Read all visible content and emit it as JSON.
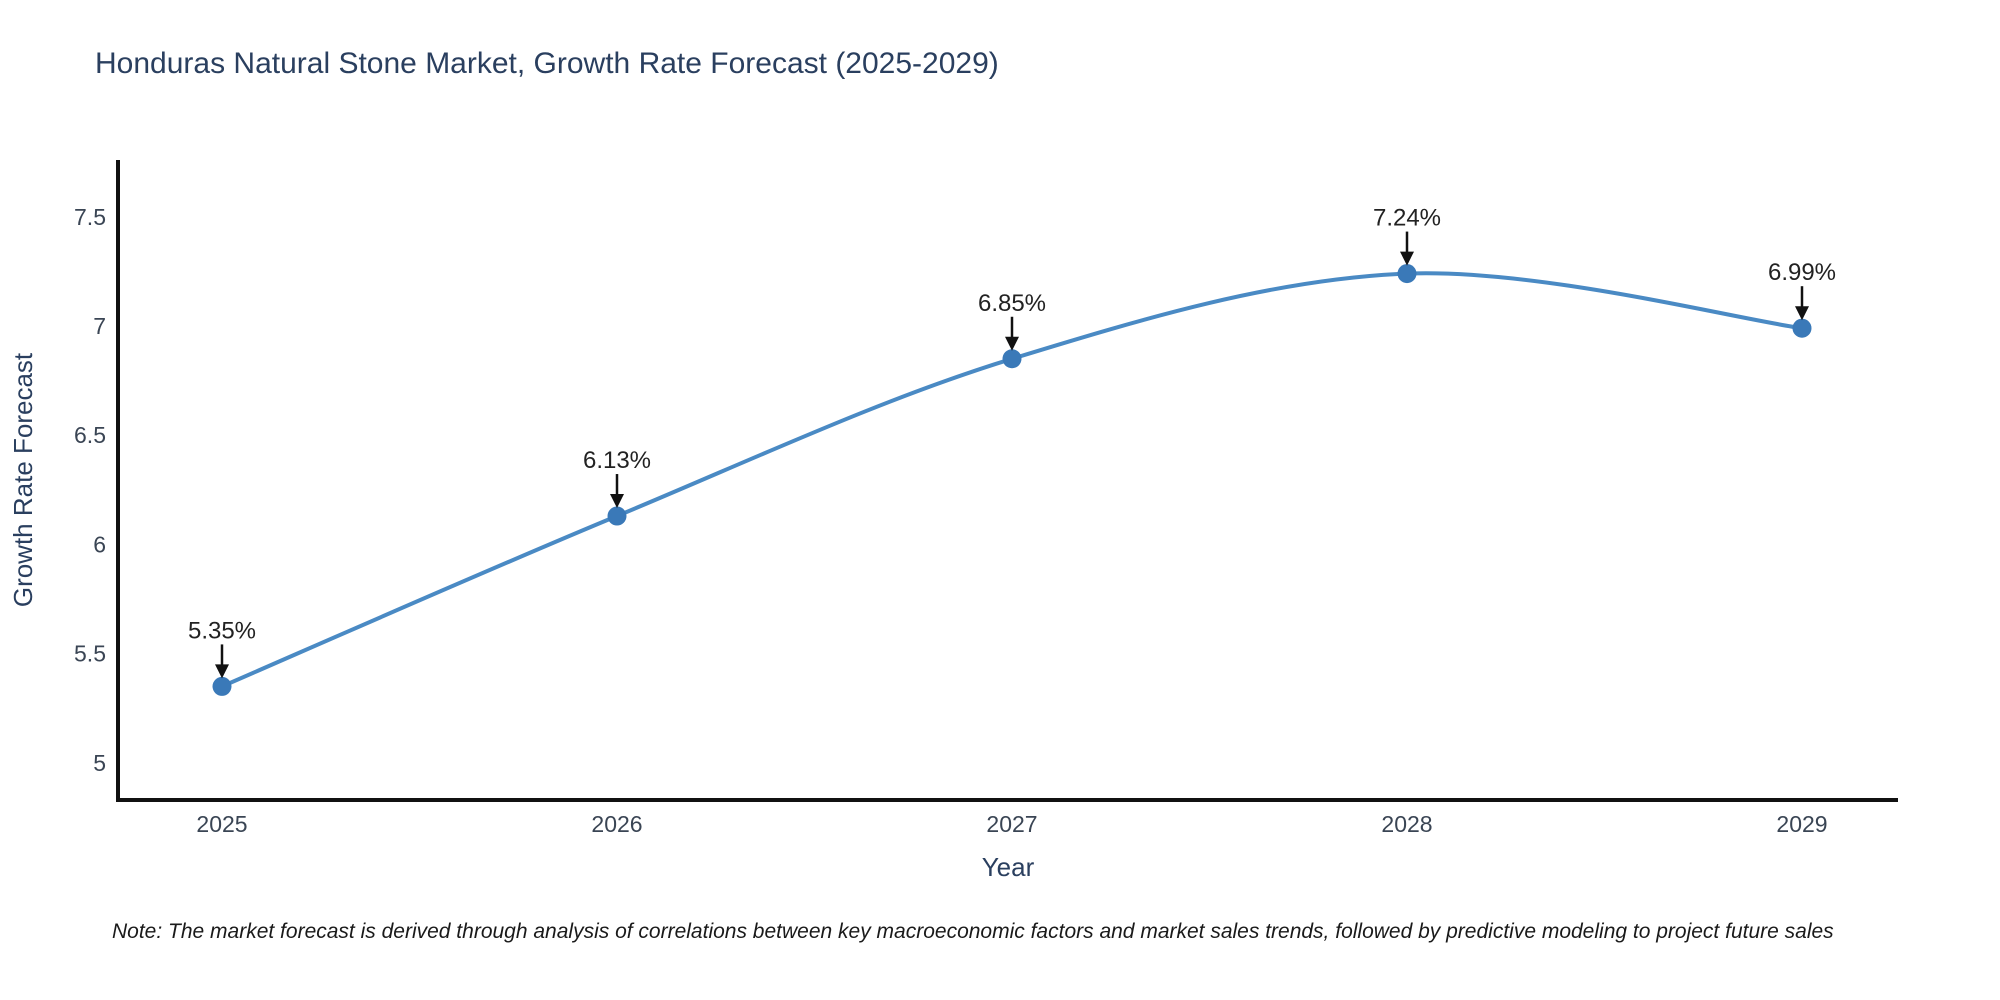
{
  "chart_data": {
    "type": "line",
    "title": "Honduras Natural Stone Market, Growth Rate Forecast (2025-2029)",
    "xlabel": "Year",
    "ylabel": "Growth Rate Forecast",
    "categories": [
      "2025",
      "2026",
      "2027",
      "2028",
      "2029"
    ],
    "values": [
      5.35,
      6.13,
      6.85,
      7.24,
      6.99
    ],
    "point_labels": [
      "5.35%",
      "6.13%",
      "6.85%",
      "7.24%",
      "6.99%"
    ],
    "yticks": [
      5,
      5.5,
      6,
      6.5,
      7,
      7.5
    ],
    "ytick_labels": [
      "5",
      "5.5",
      "6",
      "6.5",
      "7",
      "7.5"
    ],
    "ylim": [
      4.83,
      7.76
    ],
    "grid": false,
    "legend": "none",
    "line_shape": "spline",
    "colors": {
      "line": "#4a8ac4",
      "marker": "#3a79b8",
      "axis_spine": "#111111",
      "title_text": "#2a3f5f",
      "axis_title_text": "#2a3f5f",
      "tick_text": "#3a4554",
      "annotation_text": "#222222",
      "annotation_arrow": "#111111",
      "background": "#ffffff"
    },
    "note": "Note: The market forecast is derived through analysis of correlations between key macroeconomic factors and market sales trends, followed by predictive modeling to project future sales"
  }
}
